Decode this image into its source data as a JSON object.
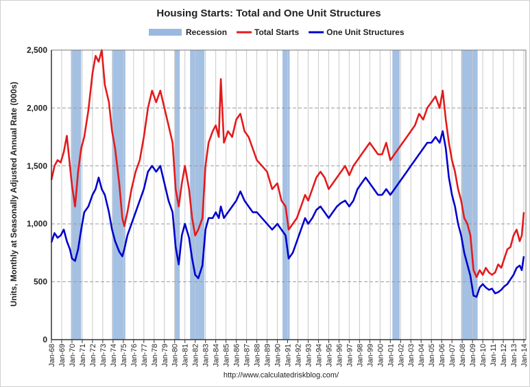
{
  "chart_data": {
    "type": "line",
    "title": "Housing Starts: Total and One Unit Structures",
    "ylabel": "Units, Monthly at Seasonally Adjusted Annual Rate (000s)",
    "source": "http://www.calculatedriskblog.com/",
    "ylim": [
      0,
      2500
    ],
    "yticks": [
      0,
      500,
      1000,
      1500,
      2000,
      2500
    ],
    "ytick_labels": [
      "0",
      "500",
      "1,000",
      "1,500",
      "2,000",
      "2,500"
    ],
    "xlim": [
      1968.0,
      2014.2
    ],
    "xtick_labels": [
      "Jan-68",
      "Jan-69",
      "Jan-70",
      "Jan-71",
      "Jan-72",
      "Jan-73",
      "Jan-74",
      "Jan-75",
      "Jan-76",
      "Jan-77",
      "Jan-78",
      "Jan-79",
      "Jan-80",
      "Jan-81",
      "Jan-82",
      "Jan-83",
      "Jan-84",
      "Jan-85",
      "Jan-86",
      "Jan-87",
      "Jan-88",
      "Jan-89",
      "Jan-90",
      "Jan-91",
      "Jan-92",
      "Jan-93",
      "Jan-94",
      "Jan-95",
      "Jan-96",
      "Jan-97",
      "Jan-98",
      "Jan-99",
      "Jan-00",
      "Jan-01",
      "Jan-02",
      "Jan-03",
      "Jan-04",
      "Jan-05",
      "Jan-06",
      "Jan-07",
      "Jan-08",
      "Jan-09",
      "Jan-10",
      "Jan-11",
      "Jan-12",
      "Jan-13",
      "Jan-14"
    ],
    "grid": true,
    "legend_placement": "top-center",
    "recessions": [
      {
        "start": 1969.9,
        "end": 1970.9
      },
      {
        "start": 1973.9,
        "end": 1975.2
      },
      {
        "start": 1980.0,
        "end": 1980.5
      },
      {
        "start": 1981.5,
        "end": 1982.9
      },
      {
        "start": 1990.5,
        "end": 1991.2
      },
      {
        "start": 2001.2,
        "end": 2001.9
      },
      {
        "start": 2007.9,
        "end": 2009.5
      }
    ],
    "series": [
      {
        "name": "Recession",
        "color": "#9ab9e0",
        "kind": "band"
      },
      {
        "name": "Total Starts",
        "color": "#e31a1c",
        "x": [
          1968.0,
          1968.3,
          1968.6,
          1968.9,
          1969.2,
          1969.5,
          1969.8,
          1970.0,
          1970.3,
          1970.6,
          1970.9,
          1971.2,
          1971.6,
          1972.0,
          1972.3,
          1972.6,
          1972.9,
          1973.2,
          1973.6,
          1973.9,
          1974.2,
          1974.6,
          1974.9,
          1975.1,
          1975.4,
          1975.8,
          1976.2,
          1976.6,
          1977.0,
          1977.4,
          1977.8,
          1978.2,
          1978.6,
          1979.0,
          1979.4,
          1979.8,
          1980.1,
          1980.4,
          1980.7,
          1981.0,
          1981.4,
          1981.7,
          1982.0,
          1982.3,
          1982.7,
          1983.0,
          1983.3,
          1983.7,
          1984.0,
          1984.3,
          1984.5,
          1984.8,
          1985.2,
          1985.6,
          1986.0,
          1986.4,
          1986.8,
          1987.2,
          1987.6,
          1988.0,
          1988.5,
          1989.0,
          1989.5,
          1990.0,
          1990.4,
          1990.8,
          1991.1,
          1991.5,
          1991.9,
          1992.3,
          1992.7,
          1993.0,
          1993.4,
          1993.8,
          1994.2,
          1994.6,
          1995.0,
          1995.4,
          1995.8,
          1996.2,
          1996.6,
          1997.0,
          1997.4,
          1997.8,
          1998.2,
          1998.6,
          1999.0,
          1999.4,
          1999.8,
          2000.2,
          2000.6,
          2001.0,
          2001.4,
          2001.8,
          2002.2,
          2002.6,
          2003.0,
          2003.4,
          2003.8,
          2004.2,
          2004.6,
          2005.0,
          2005.4,
          2005.8,
          2006.1,
          2006.4,
          2006.7,
          2007.0,
          2007.3,
          2007.6,
          2007.9,
          2008.2,
          2008.5,
          2008.8,
          2009.1,
          2009.4,
          2009.7,
          2010.0,
          2010.3,
          2010.6,
          2010.9,
          2011.2,
          2011.5,
          2011.8,
          2012.1,
          2012.4,
          2012.7,
          2013.0,
          2013.3,
          2013.6,
          2013.8,
          2014.0
        ],
        "y": [
          1380,
          1500,
          1550,
          1530,
          1620,
          1760,
          1500,
          1330,
          1150,
          1450,
          1650,
          1750,
          1980,
          2300,
          2450,
          2400,
          2500,
          2200,
          2050,
          1800,
          1650,
          1350,
          1050,
          980,
          1100,
          1300,
          1450,
          1550,
          1750,
          2000,
          2150,
          2050,
          2150,
          2000,
          1850,
          1700,
          1300,
          1150,
          1350,
          1500,
          1300,
          1050,
          900,
          950,
          1050,
          1500,
          1700,
          1800,
          1850,
          1750,
          2250,
          1700,
          1800,
          1750,
          1900,
          1950,
          1800,
          1750,
          1650,
          1550,
          1500,
          1450,
          1300,
          1350,
          1200,
          1150,
          950,
          1000,
          1050,
          1150,
          1250,
          1200,
          1300,
          1400,
          1450,
          1400,
          1300,
          1350,
          1400,
          1450,
          1500,
          1420,
          1500,
          1550,
          1600,
          1650,
          1700,
          1650,
          1600,
          1600,
          1700,
          1550,
          1600,
          1650,
          1700,
          1750,
          1800,
          1850,
          1950,
          1900,
          2000,
          2050,
          2100,
          2000,
          2150,
          1900,
          1700,
          1550,
          1450,
          1300,
          1200,
          1050,
          1000,
          900,
          600,
          540,
          600,
          560,
          620,
          580,
          560,
          580,
          650,
          620,
          700,
          780,
          800,
          900,
          950,
          850,
          900,
          1100
        ]
      },
      {
        "name": "One Unit Structures",
        "color": "#0000cc",
        "x": [
          1968.0,
          1968.3,
          1968.6,
          1968.9,
          1969.2,
          1969.5,
          1969.8,
          1970.0,
          1970.3,
          1970.6,
          1970.9,
          1971.2,
          1971.6,
          1972.0,
          1972.3,
          1972.6,
          1972.9,
          1973.2,
          1973.6,
          1973.9,
          1974.2,
          1974.6,
          1974.9,
          1975.1,
          1975.4,
          1975.8,
          1976.2,
          1976.6,
          1977.0,
          1977.4,
          1977.8,
          1978.2,
          1978.6,
          1979.0,
          1979.4,
          1979.8,
          1980.1,
          1980.4,
          1980.7,
          1981.0,
          1981.4,
          1981.7,
          1982.0,
          1982.3,
          1982.7,
          1983.0,
          1983.3,
          1983.7,
          1984.0,
          1984.3,
          1984.5,
          1984.8,
          1985.2,
          1985.6,
          1986.0,
          1986.4,
          1986.8,
          1987.2,
          1987.6,
          1988.0,
          1988.5,
          1989.0,
          1989.5,
          1990.0,
          1990.4,
          1990.8,
          1991.1,
          1991.5,
          1991.9,
          1992.3,
          1992.7,
          1993.0,
          1993.4,
          1993.8,
          1994.2,
          1994.6,
          1995.0,
          1995.4,
          1995.8,
          1996.2,
          1996.6,
          1997.0,
          1997.4,
          1997.8,
          1998.2,
          1998.6,
          1999.0,
          1999.4,
          1999.8,
          2000.2,
          2000.6,
          2001.0,
          2001.4,
          2001.8,
          2002.2,
          2002.6,
          2003.0,
          2003.4,
          2003.8,
          2004.2,
          2004.6,
          2005.0,
          2005.4,
          2005.8,
          2006.1,
          2006.4,
          2006.7,
          2007.0,
          2007.3,
          2007.6,
          2007.9,
          2008.2,
          2008.5,
          2008.8,
          2009.1,
          2009.4,
          2009.7,
          2010.0,
          2010.3,
          2010.6,
          2010.9,
          2011.2,
          2011.5,
          2011.8,
          2012.1,
          2012.4,
          2012.7,
          2013.0,
          2013.3,
          2013.6,
          2013.8,
          2014.0
        ],
        "y": [
          840,
          920,
          880,
          900,
          950,
          850,
          780,
          700,
          680,
          780,
          950,
          1100,
          1150,
          1250,
          1300,
          1400,
          1300,
          1250,
          1100,
          950,
          850,
          760,
          720,
          780,
          900,
          1000,
          1100,
          1200,
          1300,
          1450,
          1500,
          1450,
          1500,
          1350,
          1200,
          1100,
          800,
          650,
          900,
          1000,
          880,
          700,
          560,
          530,
          640,
          950,
          1050,
          1050,
          1100,
          1050,
          1150,
          1050,
          1100,
          1150,
          1200,
          1280,
          1200,
          1150,
          1100,
          1100,
          1050,
          1000,
          950,
          1000,
          950,
          900,
          700,
          750,
          850,
          950,
          1050,
          1000,
          1050,
          1120,
          1150,
          1100,
          1050,
          1100,
          1150,
          1180,
          1200,
          1150,
          1200,
          1300,
          1350,
          1400,
          1350,
          1300,
          1250,
          1250,
          1300,
          1250,
          1300,
          1350,
          1400,
          1450,
          1500,
          1550,
          1600,
          1650,
          1700,
          1700,
          1750,
          1700,
          1800,
          1650,
          1400,
          1250,
          1150,
          1000,
          900,
          750,
          650,
          550,
          380,
          370,
          450,
          480,
          450,
          430,
          440,
          400,
          410,
          430,
          460,
          480,
          520,
          560,
          620,
          640,
          600,
          720
        ]
      }
    ]
  }
}
